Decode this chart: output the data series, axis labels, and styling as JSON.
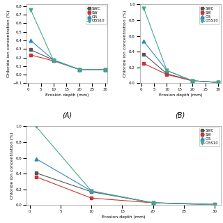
{
  "x": [
    1,
    10,
    20,
    30
  ],
  "series": {
    "SWC": {
      "A": [
        0.29,
        0.17,
        0.06,
        0.06
      ],
      "B": [
        0.37,
        0.12,
        0.03,
        0.01
      ],
      "C": [
        0.41,
        0.17,
        0.03,
        0.01
      ]
    },
    "SW": {
      "A": [
        0.23,
        0.16,
        0.06,
        0.06
      ],
      "B": [
        0.25,
        0.11,
        0.03,
        0.01
      ],
      "C": [
        0.36,
        0.09,
        0.03,
        0.005
      ]
    },
    "CI5": {
      "A": [
        0.4,
        0.17,
        0.06,
        0.06
      ],
      "B": [
        0.53,
        0.16,
        0.03,
        0.01
      ],
      "C": [
        0.59,
        0.18,
        0.03,
        0.01
      ]
    },
    "CI5S10": {
      "A": [
        0.76,
        0.16,
        0.06,
        0.06
      ],
      "B": [
        0.95,
        0.16,
        0.03,
        0.01
      ],
      "C": [
        1.0,
        0.18,
        0.03,
        0.005
      ]
    }
  },
  "colors": {
    "SWC": "#555555",
    "SW": "#cc3333",
    "CI5": "#3388cc",
    "CI5S10": "#44aa88"
  },
  "markers": {
    "SWC": "s",
    "SW": "s",
    "CI5": "^",
    "CI5S10": "v"
  },
  "xlim": [
    -0.5,
    31
  ],
  "xticks": [
    0,
    5,
    10,
    15,
    20,
    25,
    30
  ],
  "yticks_A": [
    -0.1,
    0.0,
    0.1,
    0.2,
    0.3,
    0.4,
    0.5,
    0.6,
    0.7,
    0.8
  ],
  "yticks_B": [
    0.0,
    0.2,
    0.4,
    0.6,
    0.8,
    1.0
  ],
  "yticks_C": [
    0.0,
    0.2,
    0.4,
    0.6,
    0.8,
    1.0
  ],
  "xlabel": "Erosion depth (mm)",
  "ylabel": "Chloride ion concentration (%)",
  "legend_labels": [
    "SWC",
    "SW",
    "CI5",
    "CI5S10"
  ],
  "markersize": 3.5,
  "linewidth": 0.8,
  "fontsize_label": 4.5,
  "fontsize_tick": 4.0,
  "fontsize_legend": 3.8,
  "fontsize_sublabel": 7,
  "ylabel_A": "Chloride ion concentration (%)"
}
